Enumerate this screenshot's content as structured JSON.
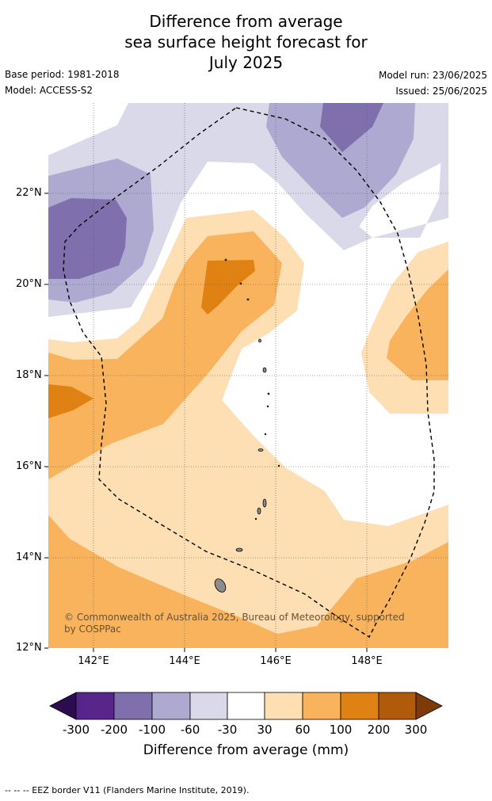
{
  "title": {
    "line1": "Difference from average",
    "line2": "sea surface height forecast for",
    "line3": "July 2025"
  },
  "meta": {
    "base_period": "Base period: 1981-2018",
    "model": "Model: ACCESS-S2",
    "model_run": "Model run: 23/06/2025",
    "issued": "Issued: 25/06/2025"
  },
  "map": {
    "lat_labels": [
      "22°N",
      "20°N",
      "18°N",
      "16°N",
      "14°N",
      "12°N"
    ],
    "lon_labels": [
      "142°E",
      "144°E",
      "146°E",
      "148°E"
    ],
    "copyright": "© Commonwealth of Australia 2025, Bureau of Meteorology, supported by COSPPac",
    "land_color": "#8c8c8c",
    "eez_line": "dashed"
  },
  "colorbar": {
    "title": "Difference from average (mm)",
    "ticks": [
      "-300",
      "-200",
      "-100",
      "-60",
      "-30",
      "30",
      "60",
      "100",
      "200",
      "300"
    ],
    "colors": {
      "below_min": "#2d0b4f",
      "c_m300_m200": "#58268a",
      "c_m200_m100": "#7f70ad",
      "c_m100_m60": "#aea9d0",
      "c_m60_m30": "#d9d9ea",
      "c_m30_30": "#ffffff",
      "c_30_60": "#fddfb3",
      "c_60_100": "#f9b35c",
      "c_100_200": "#e08213",
      "c_200_300": "#b05a0a",
      "above_max": "#7e3a08"
    }
  },
  "footer": {
    "eez_note": "--  --  -- EEZ border V11 (Flanders Marine Institute, 2019)."
  }
}
